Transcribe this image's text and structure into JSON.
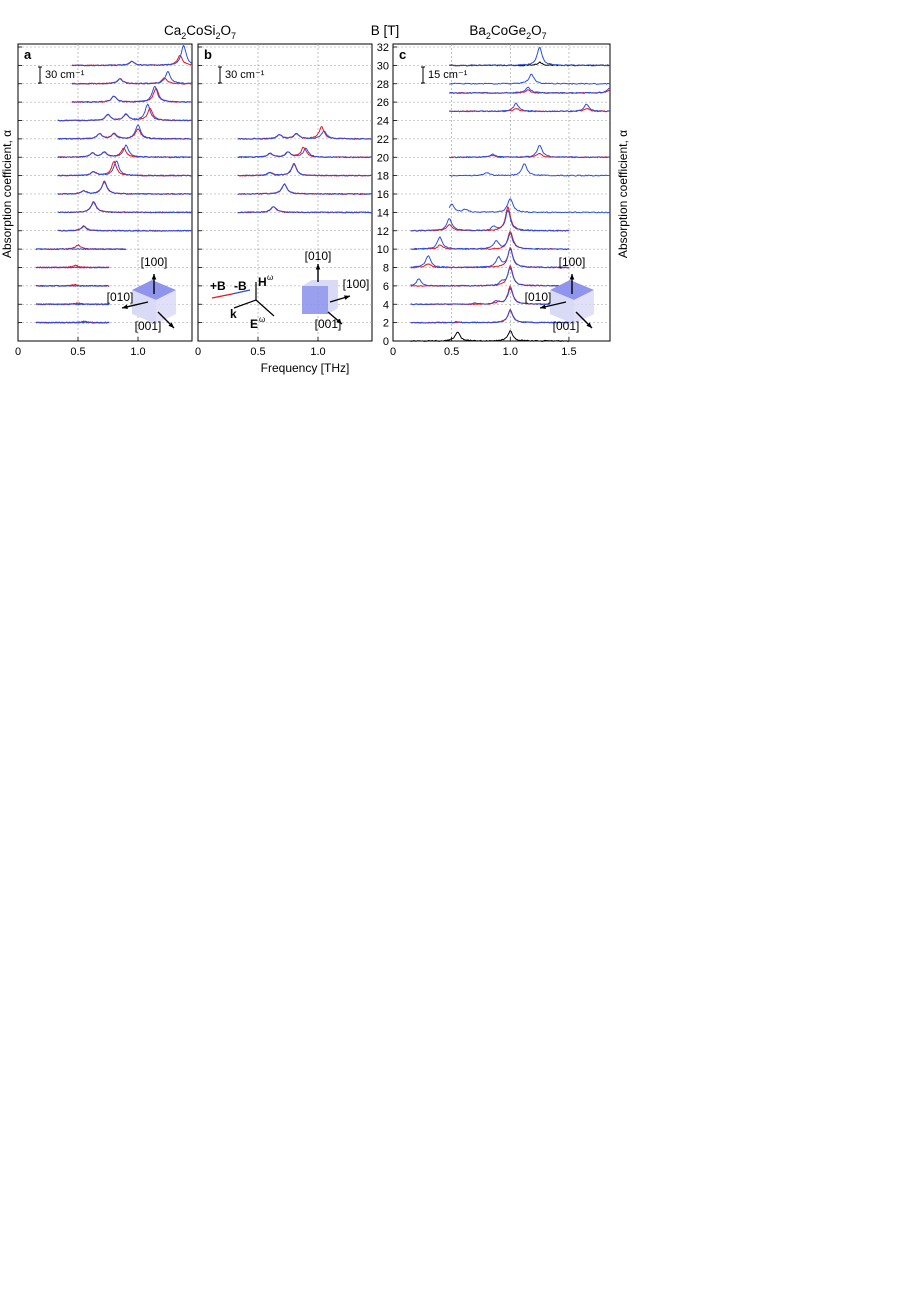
{
  "figure": {
    "title_left": "Ca2CoSi2O7",
    "title_right": "Ba2CoGe2O7",
    "center_axis_title": "B [T]",
    "xlabel": "Frequency [THz]",
    "ylabel_left": "Absorption coefficient, α",
    "ylabel_right": "Absorption coefficient, α"
  },
  "colors": {
    "plus_B": "#e8141c",
    "minus_B": "#2b4fe0",
    "zero_field": "#000000",
    "cube_face": "#8f95ec",
    "cube_side": "#d8daf6"
  },
  "panels": [
    {
      "letter": "a",
      "scale_bar": "30 cm⁻¹",
      "xticks": [
        "0",
        "0.5",
        "1.0"
      ],
      "directions": [
        "[100]",
        "[010]",
        "[001]"
      ]
    },
    {
      "letter": "b",
      "scale_bar": "30 cm⁻¹",
      "xticks": [
        "0",
        "0.5",
        "1.0"
      ],
      "directions": [
        "[010]",
        "[100]",
        "[001]"
      ],
      "legend": {
        "plus": "+B",
        "minus": "-B",
        "H": "H",
        "H_sup": "ω",
        "E": "E",
        "E_sup": "ω",
        "k": "k"
      }
    },
    {
      "letter": "c",
      "scale_bar": "15 cm⁻¹",
      "xticks": [
        "0",
        "0.5",
        "1.0",
        "1.5"
      ],
      "directions": [
        "[100]",
        "[010]",
        "[001]"
      ]
    }
  ],
  "b_axis_ticks": [
    "0",
    "2",
    "4",
    "6",
    "8",
    "10",
    "12",
    "14",
    "16",
    "18",
    "20",
    "22",
    "24",
    "26",
    "28",
    "30",
    "32"
  ],
  "chart_data": [
    {
      "panel": "a",
      "type": "line",
      "xlabel": "Frequency [THz]",
      "ylabel": "Absorption coefficient, α",
      "xlim": [
        0,
        1.45
      ],
      "ylim": [
        0,
        33
      ],
      "offset_by_field_T": true,
      "grid": true,
      "series": [
        {
          "B_T": 2,
          "traces": {
            "plus": [
              [
                0.55,
                1.2
              ]
            ],
            "minus": []
          },
          "range": [
            0.15,
            0.76
          ]
        },
        {
          "B_T": 4,
          "traces": {
            "plus": [
              [
                0.5,
                1.2
              ]
            ],
            "minus": []
          },
          "range": [
            0.15,
            0.76
          ]
        },
        {
          "B_T": 6,
          "traces": {
            "plus": [
              [
                0.47,
                1.2
              ]
            ],
            "minus": []
          },
          "range": [
            0.15,
            0.76
          ]
        },
        {
          "B_T": 8,
          "traces": {
            "plus": [
              [
                0.48,
                2.0
              ]
            ],
            "minus": []
          },
          "range": [
            0.15,
            0.76
          ]
        },
        {
          "B_T": 10,
          "traces": {
            "plus": [
              [
                0.5,
                4.0
              ]
            ],
            "minus": []
          },
          "range": [
            0.15,
            0.9
          ]
        },
        {
          "B_T": 12,
          "traces": {
            "plus": [
              [
                0.55,
                5.0
              ]
            ],
            "minus": [
              [
                0.55,
                4.0
              ]
            ]
          },
          "range": [
            0.33,
            1.45
          ]
        },
        {
          "B_T": 14,
          "traces": {
            "plus": [
              [
                0.63,
                11.0
              ]
            ],
            "minus": [
              [
                0.63,
                10.0
              ]
            ]
          },
          "range": [
            0.33,
            1.45
          ]
        },
        {
          "B_T": 16,
          "traces": {
            "plus": [
              [
                0.72,
                13.0
              ],
              [
                0.55,
                3.0
              ]
            ],
            "minus": [
              [
                0.72,
                12.0
              ],
              [
                0.55,
                3.0
              ]
            ]
          },
          "range": [
            0.33,
            1.45
          ]
        },
        {
          "B_T": 18,
          "traces": {
            "plus": [
              [
                0.8,
                14.0
              ],
              [
                0.63,
                4.0
              ]
            ],
            "minus": [
              [
                0.82,
                15.0
              ],
              [
                0.63,
                4.0
              ]
            ]
          },
          "range": [
            0.33,
            1.45
          ]
        },
        {
          "B_T": 20,
          "traces": {
            "plus": [
              [
                0.88,
                9.0
              ],
              [
                0.62,
                4.0
              ],
              [
                0.72,
                5.0
              ]
            ],
            "minus": [
              [
                0.9,
                12.0
              ],
              [
                0.62,
                4.0
              ],
              [
                0.72,
                5.0
              ]
            ]
          },
          "range": [
            0.33,
            1.45
          ]
        },
        {
          "B_T": 22,
          "traces": {
            "plus": [
              [
                1.0,
                10.0
              ],
              [
                0.68,
                5.0
              ],
              [
                0.8,
                5.0
              ]
            ],
            "minus": [
              [
                1.0,
                14.0
              ],
              [
                0.68,
                5.0
              ],
              [
                0.8,
                5.0
              ]
            ]
          },
          "range": [
            0.33,
            1.45
          ]
        },
        {
          "B_T": 24,
          "traces": {
            "plus": [
              [
                1.1,
                12.0
              ],
              [
                0.75,
                6.0
              ],
              [
                0.9,
                6.0
              ]
            ],
            "minus": [
              [
                1.08,
                16.0
              ],
              [
                0.75,
                6.0
              ],
              [
                0.9,
                6.0
              ]
            ]
          },
          "range": [
            0.33,
            1.45
          ]
        },
        {
          "B_T": 26,
          "traces": {
            "plus": [
              [
                1.15,
                14.0
              ],
              [
                0.8,
                6.0
              ]
            ],
            "minus": [
              [
                1.14,
                16.0
              ],
              [
                0.8,
                6.0
              ]
            ]
          },
          "range": [
            0.45,
            1.45
          ]
        },
        {
          "B_T": 28,
          "traces": {
            "plus": [
              [
                1.22,
                6.0
              ],
              [
                0.85,
                5.0
              ]
            ],
            "minus": [
              [
                1.25,
                12.0
              ],
              [
                0.85,
                5.0
              ]
            ]
          },
          "range": [
            0.45,
            1.45
          ]
        },
        {
          "B_T": 30,
          "traces": {
            "plus": [
              [
                1.35,
                10.0
              ],
              [
                0.95,
                4.0
              ]
            ],
            "minus": [
              [
                1.38,
                20.0
              ],
              [
                0.95,
                4.0
              ]
            ]
          },
          "range": [
            0.45,
            1.45
          ]
        }
      ]
    },
    {
      "panel": "b",
      "type": "line",
      "xlabel": "Frequency [THz]",
      "ylabel": "Absorption coefficient, α",
      "xlim": [
        0,
        1.45
      ],
      "ylim": [
        0,
        33
      ],
      "offset_by_field_T": true,
      "grid": true,
      "series": [
        {
          "B_T": 14,
          "traces": {
            "plus": [
              [
                0.63,
                6.0
              ]
            ],
            "minus": [
              [
                0.63,
                6.0
              ]
            ]
          },
          "range": [
            0.33,
            1.45
          ]
        },
        {
          "B_T": 16,
          "traces": {
            "plus": [
              [
                0.72,
                10.0
              ]
            ],
            "minus": [
              [
                0.72,
                10.0
              ]
            ]
          },
          "range": [
            0.33,
            1.45
          ]
        },
        {
          "B_T": 18,
          "traces": {
            "plus": [
              [
                0.8,
                12.0
              ],
              [
                0.6,
                3.0
              ]
            ],
            "minus": [
              [
                0.8,
                11.0
              ],
              [
                0.6,
                3.0
              ]
            ]
          },
          "range": [
            0.33,
            1.45
          ]
        },
        {
          "B_T": 20,
          "traces": {
            "plus": [
              [
                0.88,
                10.0
              ],
              [
                0.6,
                4.0
              ],
              [
                0.75,
                5.0
              ]
            ],
            "minus": [
              [
                0.9,
                9.0
              ],
              [
                0.6,
                4.0
              ],
              [
                0.75,
                5.0
              ]
            ]
          },
          "range": [
            0.33,
            1.45
          ]
        },
        {
          "B_T": 22,
          "traces": {
            "plus": [
              [
                1.03,
                12.0
              ],
              [
                0.68,
                4.0
              ],
              [
                0.82,
                5.0
              ]
            ],
            "minus": [
              [
                1.05,
                8.0
              ],
              [
                0.68,
                4.0
              ],
              [
                0.82,
                5.0
              ]
            ]
          },
          "range": [
            0.33,
            1.45
          ]
        }
      ]
    },
    {
      "panel": "c",
      "type": "line",
      "xlabel": "Frequency [THz]",
      "ylabel": "Absorption coefficient, α",
      "xlim": [
        0,
        1.85
      ],
      "ylim": [
        0,
        33
      ],
      "offset_by_field_T": true,
      "grid": true,
      "series": [
        {
          "B_T": 0,
          "traces": {
            "zero": [
              [
                0.55,
                9.0
              ],
              [
                1.0,
                10.0
              ]
            ]
          },
          "range": [
            0.15,
            1.5
          ]
        },
        {
          "B_T": 2,
          "traces": {
            "plus": [
              [
                1.0,
                13.0
              ]
            ],
            "minus": [
              [
                1.0,
                12.0
              ],
              [
                0.55,
                1.0
              ]
            ]
          },
          "range": [
            0.15,
            1.5
          ]
        },
        {
          "B_T": 4,
          "traces": {
            "plus": [
              [
                1.0,
                18.0
              ],
              [
                0.9,
                2.0
              ]
            ],
            "minus": [
              [
                1.0,
                16.0
              ],
              [
                0.88,
                3.0
              ],
              [
                0.7,
                1.5
              ]
            ]
          },
          "range": [
            0.15,
            1.5
          ]
        },
        {
          "B_T": 6,
          "traces": {
            "plus": [
              [
                1.0,
                20.0
              ]
            ],
            "minus": [
              [
                1.0,
                18.0
              ],
              [
                0.22,
                7.0
              ],
              [
                0.93,
                4.0
              ]
            ]
          },
          "range": [
            0.15,
            1.5
          ]
        },
        {
          "B_T": 8,
          "traces": {
            "plus": [
              [
                1.0,
                20.0
              ],
              [
                0.3,
                4.0
              ]
            ],
            "minus": [
              [
                1.0,
                18.0
              ],
              [
                0.3,
                12.0
              ],
              [
                0.9,
                10.0
              ]
            ]
          },
          "range": [
            0.15,
            1.5
          ]
        },
        {
          "B_T": 10,
          "traces": {
            "plus": [
              [
                1.0,
                18.0
              ],
              [
                0.4,
                4.0
              ]
            ],
            "minus": [
              [
                1.0,
                15.0
              ],
              [
                0.4,
                12.0
              ],
              [
                0.88,
                8.0
              ]
            ]
          },
          "range": [
            0.15,
            1.5
          ]
        },
        {
          "B_T": 12,
          "traces": {
            "plus": [
              [
                0.98,
                24.0
              ],
              [
                0.48,
                6.0
              ]
            ],
            "minus": [
              [
                0.98,
                20.0
              ],
              [
                0.48,
                12.0
              ],
              [
                0.86,
                4.0
              ]
            ]
          },
          "range": [
            0.15,
            1.5
          ]
        },
        {
          "B_T": 14,
          "traces": {
            "minus": [
              [
                1.0,
                14.0
              ],
              [
                0.5,
                8.0
              ],
              [
                0.62,
                3.0
              ]
            ]
          },
          "range": [
            0.48,
            1.85
          ]
        },
        {
          "B_T": 18,
          "traces": {
            "minus": [
              [
                1.12,
                12.0
              ],
              [
                0.8,
                3.0
              ]
            ]
          },
          "range": [
            0.48,
            1.85
          ]
        },
        {
          "B_T": 20,
          "traces": {
            "plus": [
              [
                1.25,
                4.0
              ],
              [
                0.85,
                2.0
              ]
            ],
            "minus": [
              [
                1.25,
                12.0
              ],
              [
                0.85,
                3.0
              ]
            ]
          },
          "range": [
            0.48,
            1.85
          ]
        },
        {
          "B_T": 25,
          "traces": {
            "plus": [
              [
                1.05,
                3.0
              ],
              [
                1.65,
                3.0
              ]
            ],
            "minus": [
              [
                1.05,
                8.0
              ],
              [
                1.65,
                7.0
              ]
            ]
          },
          "range": [
            0.48,
            1.85
          ]
        },
        {
          "B_T": 27,
          "traces": {
            "plus": [
              [
                1.15,
                3.0
              ],
              [
                1.85,
                3.0
              ]
            ],
            "minus": [
              [
                1.15,
                6.0
              ],
              [
                1.85,
                5.0
              ]
            ]
          },
          "range": [
            0.48,
            1.85
          ]
        },
        {
          "B_T": 28,
          "traces": {
            "minus": [
              [
                1.18,
                10.0
              ]
            ]
          },
          "range": [
            0.48,
            1.85
          ]
        },
        {
          "B_T": 30,
          "traces": {
            "zero": [
              [
                1.25,
                3.0
              ]
            ],
            "minus": [
              [
                1.25,
                18.0
              ]
            ]
          },
          "range": [
            0.48,
            1.85
          ]
        }
      ]
    }
  ]
}
